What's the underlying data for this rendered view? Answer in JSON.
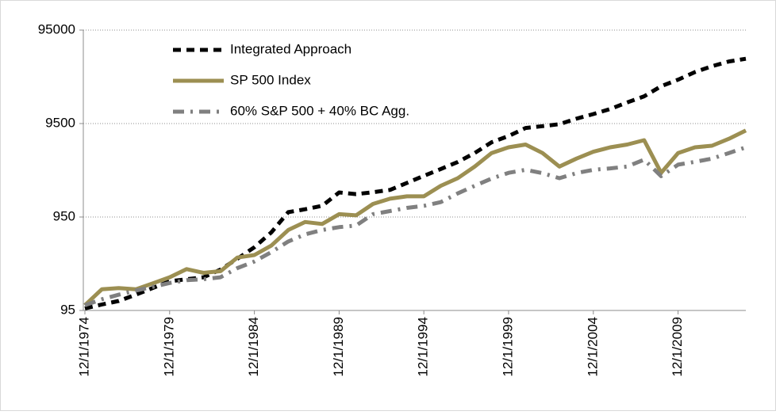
{
  "chart_data": {
    "type": "line",
    "log_scale": true,
    "grid": true,
    "x": [
      "12/1/1974",
      "12/1/1975",
      "12/1/1976",
      "12/1/1977",
      "12/1/1978",
      "12/1/1979",
      "12/1/1980",
      "12/1/1981",
      "12/1/1982",
      "12/1/1983",
      "12/1/1984",
      "12/1/1985",
      "12/1/1986",
      "12/1/1987",
      "12/1/1988",
      "12/1/1989",
      "12/1/1990",
      "12/1/1991",
      "12/1/1992",
      "12/1/1993",
      "12/1/1994",
      "12/1/1995",
      "12/1/1996",
      "12/1/1997",
      "12/1/1998",
      "12/1/1999",
      "12/1/2000",
      "12/1/2001",
      "12/1/2002",
      "12/1/2003",
      "12/1/2004",
      "12/1/2005",
      "12/1/2006",
      "12/1/2007",
      "12/1/2008",
      "12/1/2009",
      "12/1/2010",
      "12/1/2011",
      "12/1/2012",
      "12/1/2013"
    ],
    "xlim": [
      "12/1/1974",
      "12/1/2013"
    ],
    "xticks": [
      "12/1/1974",
      "12/1/1979",
      "12/1/1984",
      "12/1/1989",
      "12/1/1994",
      "12/1/1999",
      "12/1/2004",
      "12/1/2009"
    ],
    "ylim": [
      95,
      95000
    ],
    "yticks": [
      95,
      950,
      9500,
      95000
    ],
    "series": [
      {
        "name": "Integrated Approach",
        "color": "#000000",
        "dash": "dashed",
        "values": [
          100,
          110,
          120,
          140,
          165,
          195,
          205,
          215,
          260,
          340,
          451,
          650,
          1070,
          1150,
          1250,
          1740,
          1670,
          1750,
          1850,
          2200,
          2620,
          3100,
          3680,
          4600,
          5990,
          6990,
          8510,
          8900,
          9360,
          10700,
          12000,
          13600,
          16000,
          18600,
          23800,
          28000,
          33800,
          39000,
          43900,
          46900
        ]
      },
      {
        "name": "SP 500 Index",
        "color": "#9c8f52",
        "dash": "solid",
        "values": [
          108,
          160,
          165,
          160,
          185,
          215,
          263,
          240,
          250,
          350,
          372,
          470,
          690,
          840,
          800,
          1020,
          990,
          1310,
          1490,
          1580,
          1580,
          2050,
          2470,
          3290,
          4600,
          5290,
          5660,
          4600,
          3290,
          4000,
          4740,
          5290,
          5660,
          6300,
          2820,
          4600,
          5290,
          5500,
          6530,
          8000
        ]
      },
      {
        "name": "60% S&P 500 + 40% BC Agg.",
        "color": "#808080",
        "dash": "dashdot",
        "values": [
          108,
          125,
          140,
          155,
          170,
          187,
          200,
          205,
          215,
          270,
          317,
          400,
          520,
          620,
          690,
          740,
          770,
          1020,
          1100,
          1190,
          1250,
          1370,
          1700,
          2050,
          2450,
          2820,
          3040,
          2800,
          2470,
          2800,
          3040,
          3150,
          3290,
          3900,
          2600,
          3450,
          3700,
          4000,
          4600,
          5290
        ]
      }
    ]
  }
}
